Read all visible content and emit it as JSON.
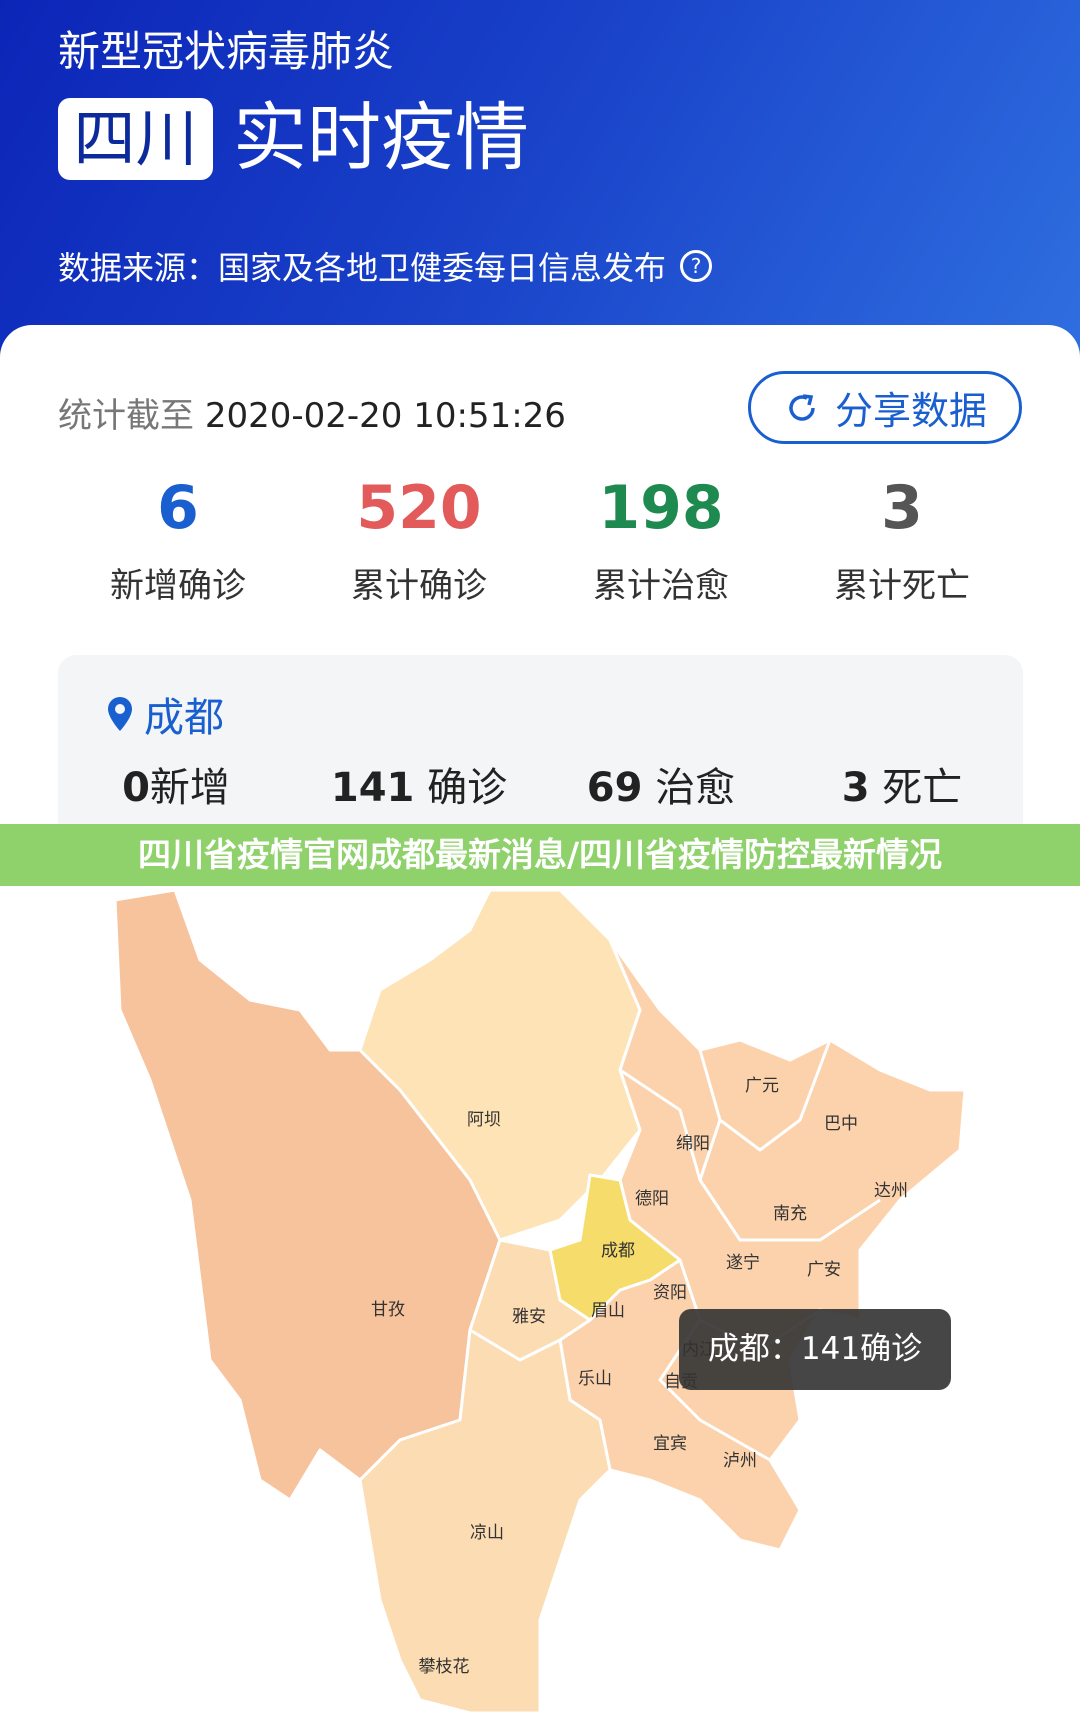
{
  "header": {
    "subtitle": "新型冠状病毒肺炎",
    "region": "四川",
    "title": "实时疫情",
    "source": "数据来源：国家及各地卫健委每日信息发布",
    "help_icon": "question-circle-icon"
  },
  "summary": {
    "timestamp_label": "统计截至",
    "timestamp": "2020-02-20 10:51:26",
    "share_label": "分享数据",
    "share_icon": "share-icon",
    "stats": [
      {
        "value": "6",
        "label": "新增确诊",
        "color": "#1a5fd0"
      },
      {
        "value": "520",
        "label": "累计确诊",
        "color": "#e35a5a"
      },
      {
        "value": "198",
        "label": "累计治愈",
        "color": "#1f8a50"
      },
      {
        "value": "3",
        "label": "累计死亡",
        "color": "#555555"
      }
    ]
  },
  "city": {
    "name": "成都",
    "new": "0",
    "new_label": "新增",
    "confirmed": "141",
    "confirmed_label": "确诊",
    "cured": "69",
    "cured_label": "治愈",
    "deaths": "3",
    "deaths_label": "死亡"
  },
  "banner": "四川省疫情官网成都最新消息/四川省疫情防控最新情况",
  "map": {
    "highlight_color": "#f6dc6a",
    "labels": [
      "阿坝",
      "甘孜",
      "广元",
      "巴中",
      "绵阳",
      "达州",
      "德阳",
      "南充",
      "成都",
      "遂宁",
      "广安",
      "资阳",
      "雅安",
      "眉山",
      "内江",
      "乐山",
      "自贡",
      "宜宾",
      "泸州",
      "凉山",
      "攀枝花"
    ],
    "tooltip": "成都：141确诊"
  }
}
